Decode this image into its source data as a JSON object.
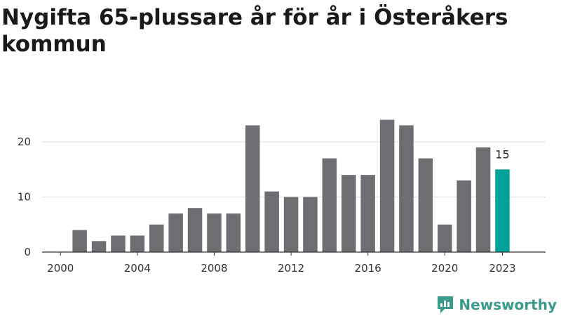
{
  "title": "Nygifta 65-plussare år för år i Österåkers kommun",
  "brand": {
    "name": "Newsworthy",
    "icon": "newsworthy-logo-icon",
    "color": "#3a9a8c"
  },
  "colors": {
    "bar": "#6e6d72",
    "highlight": "#00a39a",
    "grid": "#dddddd",
    "axis": "#333333"
  },
  "chart_data": {
    "type": "bar",
    "title": "Nygifta 65-plussare år för år i Österåkers kommun",
    "xlabel": "",
    "ylabel": "",
    "categories": [
      "2000",
      "2001",
      "2002",
      "2003",
      "2004",
      "2005",
      "2006",
      "2007",
      "2008",
      "2009",
      "2010",
      "2011",
      "2012",
      "2013",
      "2014",
      "2015",
      "2016",
      "2017",
      "2018",
      "2019",
      "2020",
      "2021",
      "2022",
      "2023"
    ],
    "values": [
      0,
      4,
      2,
      3,
      3,
      5,
      7,
      8,
      7,
      7,
      23,
      11,
      10,
      10,
      17,
      14,
      14,
      24,
      23,
      17,
      5,
      13,
      19,
      15
    ],
    "ylim": [
      0,
      25
    ],
    "yticks": [
      0,
      10,
      20
    ],
    "xticks": [
      "2000",
      "2004",
      "2008",
      "2012",
      "2016",
      "2020",
      "2023"
    ],
    "highlight": {
      "category": "2023",
      "label": "15"
    },
    "grid": true,
    "legend": "none"
  }
}
